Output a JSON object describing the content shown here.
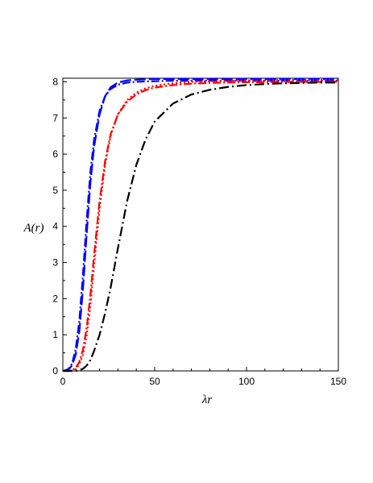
{
  "chart_data": {
    "type": "line",
    "title": "",
    "xlabel": "λr",
    "ylabel": "A(r)",
    "xlim": [
      0,
      150
    ],
    "ylim": [
      0,
      8.1
    ],
    "x_ticks": [
      "0",
      "50",
      "100",
      "150"
    ],
    "y_ticks": [
      "0",
      "1",
      "2",
      "3",
      "4",
      "5",
      "6",
      "7",
      "8"
    ],
    "grid": false,
    "legend": "none",
    "x": [
      0,
      3,
      5,
      7,
      9,
      11,
      13,
      15,
      17,
      20,
      23,
      26,
      30,
      35,
      40,
      45,
      50,
      60,
      70,
      80,
      90,
      100,
      110,
      120,
      130,
      140,
      150
    ],
    "series": [
      {
        "color": "#0000ff",
        "dash": "dash-dot",
        "values": [
          0.0,
          0.05,
          0.2,
          0.6,
          1.4,
          2.7,
          4.2,
          5.5,
          6.4,
          7.2,
          7.6,
          7.8,
          7.92,
          7.98,
          8.0,
          8.01,
          8.02,
          8.03,
          8.03,
          8.03,
          8.03,
          8.03,
          8.03,
          8.03,
          8.03,
          8.03,
          8.03
        ]
      },
      {
        "color": "#0000ff",
        "dash": "long-dash",
        "values": [
          0.0,
          0.03,
          0.15,
          0.45,
          1.1,
          2.3,
          3.8,
          5.2,
          6.2,
          7.1,
          7.6,
          7.85,
          7.98,
          8.04,
          8.06,
          8.07,
          8.08,
          8.08,
          8.08,
          8.08,
          8.08,
          8.08,
          8.08,
          8.08,
          8.08,
          8.08,
          8.08
        ]
      },
      {
        "color": "#ff0000",
        "dash": "dash-dot",
        "values": [
          0.0,
          0.0,
          0.02,
          0.08,
          0.25,
          0.6,
          1.2,
          2.1,
          3.2,
          4.7,
          5.8,
          6.55,
          7.1,
          7.45,
          7.65,
          7.77,
          7.84,
          7.91,
          7.95,
          7.97,
          7.98,
          7.99,
          7.99,
          8.0,
          8.0,
          8.0,
          8.0
        ]
      },
      {
        "color": "#ff0000",
        "dash": "dot",
        "values": [
          0.0,
          0.0,
          0.01,
          0.05,
          0.18,
          0.45,
          1.0,
          1.8,
          2.9,
          4.5,
          5.7,
          6.5,
          7.1,
          7.5,
          7.7,
          7.82,
          7.89,
          7.96,
          8.0,
          8.02,
          8.03,
          8.04,
          8.04,
          8.05,
          8.05,
          8.05,
          8.05
        ]
      },
      {
        "color": "#000000",
        "dash": "long-dash-dot",
        "values": [
          0.0,
          0.0,
          0.0,
          0.0,
          0.02,
          0.06,
          0.15,
          0.3,
          0.55,
          1.0,
          1.6,
          2.3,
          3.4,
          4.7,
          5.7,
          6.4,
          6.9,
          7.4,
          7.65,
          7.78,
          7.86,
          7.91,
          7.94,
          7.96,
          7.97,
          7.98,
          7.98
        ]
      }
    ]
  }
}
